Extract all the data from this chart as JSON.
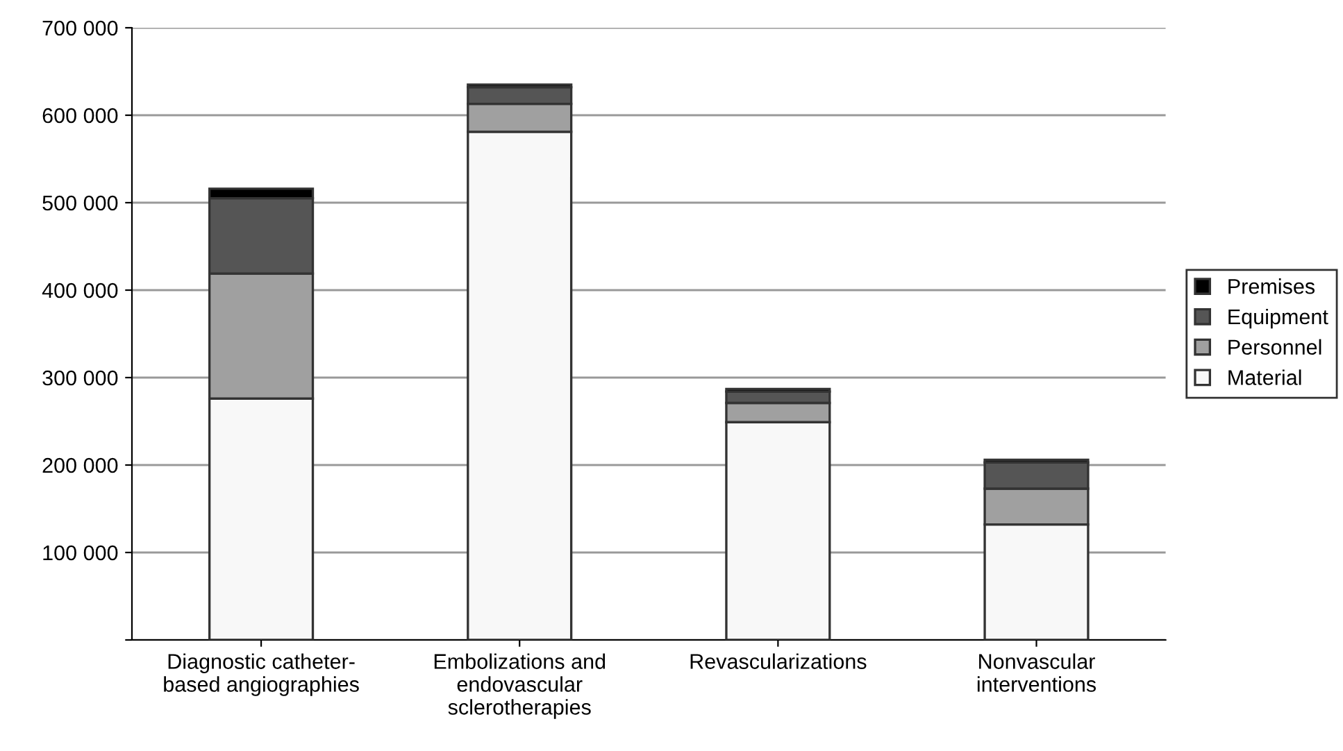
{
  "chart_data": {
    "type": "bar",
    "stacked": true,
    "categories": [
      "Diagnostic catheter-\nbased angiographies",
      "Embolizations and\nendovascular\nsclerotherapies",
      "Revascularizations",
      "Nonvascular\ninterventions"
    ],
    "series": [
      {
        "name": "Material",
        "color": "#f8f8f8",
        "values": [
          276000,
          581000,
          249000,
          132000
        ]
      },
      {
        "name": "Personnel",
        "color": "#a0a0a0",
        "values": [
          143000,
          32000,
          22000,
          41000
        ]
      },
      {
        "name": "Equipment",
        "color": "#555555",
        "values": [
          86000,
          19000,
          13000,
          30000
        ]
      },
      {
        "name": "Premises",
        "color": "#000000",
        "values": [
          11000,
          3000,
          3000,
          3000
        ]
      }
    ],
    "ylim": [
      0,
      700000
    ],
    "yticks": [
      {
        "value": 0,
        "label": null
      },
      {
        "value": 100000,
        "label": "100 000"
      },
      {
        "value": 200000,
        "label": "200 000"
      },
      {
        "value": 300000,
        "label": "300 000"
      },
      {
        "value": 400000,
        "label": "400 000"
      },
      {
        "value": 500000,
        "label": "500 000"
      },
      {
        "value": 600000,
        "label": "600 000"
      },
      {
        "value": 700000,
        "label": "700 000"
      }
    ],
    "grid": "y",
    "legend": "right"
  }
}
